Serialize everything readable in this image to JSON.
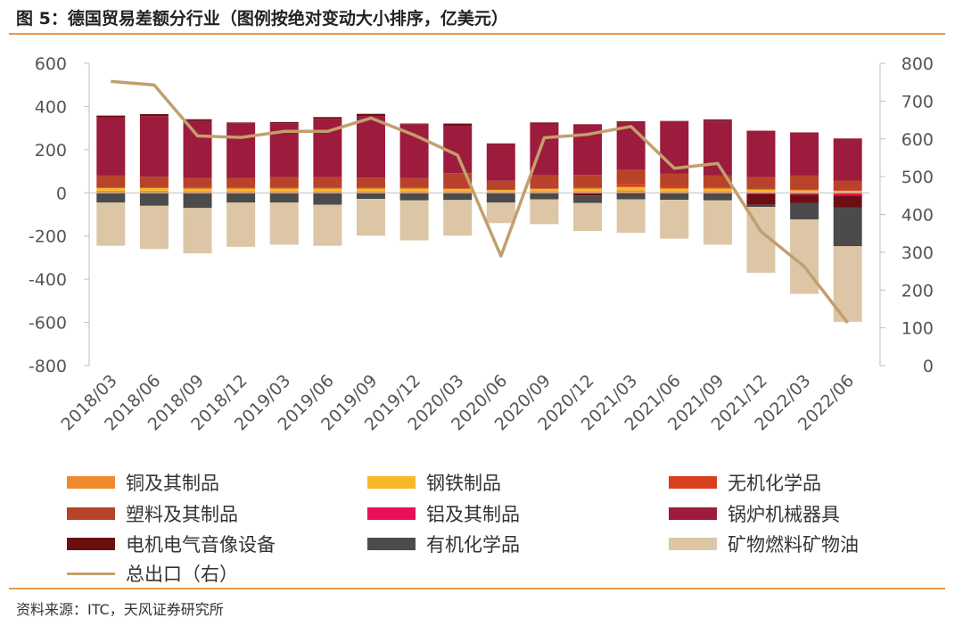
{
  "header": {
    "title": "图 5：德国贸易差额分行业（图例按绝对变动大小排序，亿美元）"
  },
  "footer": {
    "source": "资料来源：ITC，天风证券研究所"
  },
  "colors": {
    "copper": "#f08a2e",
    "steel": "#f7b928",
    "inorganic": "#d9411e",
    "plastic": "#b8432a",
    "aluminum": "#e8105a",
    "boiler": "#9d1b3c",
    "electric": "#6b0f13",
    "organic": "#4b4b4b",
    "fuel": "#dcc6a6",
    "total": "#c29f6f",
    "axis": "#bfbfbf",
    "rule": "#e69a46"
  },
  "chart_data": {
    "type": "bar",
    "stacked": true,
    "title": "德国贸易差额分行业（图例按绝对变动大小排序，亿美元）",
    "categories": [
      "2018/03",
      "2018/06",
      "2018/09",
      "2018/12",
      "2019/03",
      "2019/06",
      "2019/09",
      "2019/12",
      "2020/03",
      "2020/06",
      "2020/09",
      "2020/12",
      "2021/03",
      "2021/06",
      "2021/09",
      "2021/12",
      "2022/03",
      "2022/06"
    ],
    "ylim_left": [
      -800,
      600
    ],
    "yticks_left": [
      "600",
      "400",
      "200",
      "0",
      "-200",
      "-400",
      "-600",
      "-800"
    ],
    "ylim_right": [
      0,
      800
    ],
    "yticks_right": [
      "800",
      "700",
      "600",
      "500",
      "400",
      "300",
      "200",
      "100",
      "0"
    ],
    "series": [
      {
        "name": "铜及其制品",
        "color_key": "copper",
        "axis": "left",
        "values": [
          10,
          10,
          8,
          8,
          8,
          8,
          8,
          8,
          8,
          5,
          8,
          8,
          12,
          8,
          8,
          5,
          4,
          3
        ]
      },
      {
        "name": "钢铁制品",
        "color_key": "steel",
        "axis": "left",
        "values": [
          12,
          12,
          12,
          12,
          12,
          12,
          12,
          12,
          10,
          8,
          10,
          12,
          15,
          12,
          12,
          10,
          8,
          6
        ]
      },
      {
        "name": "无机化学品",
        "color_key": "inorganic",
        "axis": "left",
        "values": [
          3,
          3,
          3,
          3,
          3,
          3,
          3,
          3,
          3,
          3,
          3,
          3,
          15,
          10,
          5,
          3,
          3,
          3
        ]
      },
      {
        "name": "塑料及其制品",
        "color_key": "plastic",
        "axis": "left",
        "values": [
          55,
          50,
          45,
          45,
          50,
          50,
          48,
          45,
          70,
          40,
          60,
          60,
          65,
          60,
          55,
          55,
          65,
          45
        ]
      },
      {
        "name": "铝及其制品",
        "color_key": "aluminum",
        "axis": "left",
        "values": [
          0,
          0,
          0,
          0,
          0,
          0,
          0,
          0,
          0,
          0,
          0,
          0,
          0,
          0,
          0,
          -5,
          -8,
          -12
        ]
      },
      {
        "name": "锅炉机械器具",
        "color_key": "boiler",
        "axis": "left",
        "values": [
          270,
          280,
          265,
          255,
          250,
          270,
          285,
          250,
          220,
          170,
          240,
          235,
          225,
          240,
          255,
          215,
          200,
          195
        ]
      },
      {
        "name": "电机电气音像设备",
        "color_key": "electric",
        "axis": "left",
        "values": [
          8,
          10,
          8,
          3,
          5,
          8,
          10,
          3,
          10,
          3,
          5,
          -12,
          -5,
          3,
          5,
          -50,
          -40,
          -55
        ]
      },
      {
        "name": "有机化学品",
        "color_key": "organic",
        "axis": "left",
        "values": [
          -45,
          -60,
          -70,
          -45,
          -45,
          -55,
          -28,
          -35,
          -33,
          -45,
          -30,
          -35,
          -25,
          -32,
          -35,
          -10,
          -75,
          -180
        ]
      },
      {
        "name": "矿物燃料矿物油",
        "color_key": "fuel",
        "axis": "left",
        "values": [
          -200,
          -200,
          -210,
          -205,
          -195,
          -190,
          -170,
          -185,
          -165,
          -95,
          -115,
          -130,
          -155,
          -180,
          -205,
          -305,
          -345,
          -350
        ]
      },
      {
        "name": "总出口（右）",
        "color_key": "total",
        "axis": "right",
        "type": "line",
        "values": [
          752,
          743,
          608,
          604,
          620,
          620,
          655,
          610,
          557,
          290,
          603,
          612,
          633,
          522,
          535,
          355,
          262,
          113
        ]
      }
    ]
  }
}
